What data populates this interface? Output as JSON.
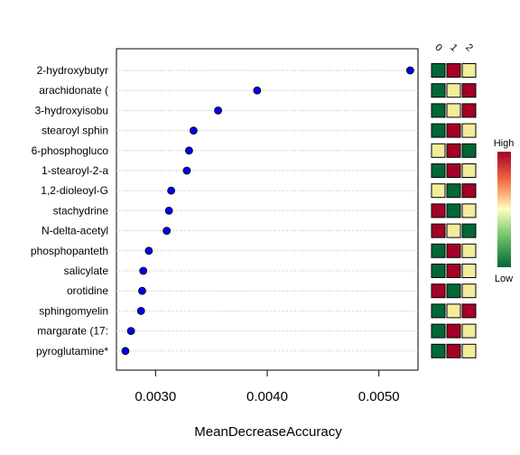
{
  "chart_data": {
    "type": "scatter",
    "xlabel": "MeanDecreaseAccuracy",
    "xlim": [
      0.00265,
      0.00535
    ],
    "xticks": [
      0.003,
      0.004,
      0.005
    ],
    "xtick_labels": [
      "0.0030",
      "0.0040",
      "0.0050"
    ],
    "grid": "dotted horizontal guide lines",
    "point_color": "#0000ee",
    "features": [
      {
        "label": "2-hydroxybutyr",
        "value": 0.00528
      },
      {
        "label": "arachidonate (",
        "value": 0.00391
      },
      {
        "label": "3-hydroxyisobu",
        "value": 0.00356
      },
      {
        "label": "stearoyl sphin",
        "value": 0.00334
      },
      {
        "label": "6-phosphogluco",
        "value": 0.0033
      },
      {
        "label": "1-stearoyl-2-a",
        "value": 0.00328
      },
      {
        "label": "1,2-dioleoyl-G",
        "value": 0.00314
      },
      {
        "label": "stachydrine",
        "value": 0.00312
      },
      {
        "label": "N-delta-acetyl",
        "value": 0.0031
      },
      {
        "label": "phosphopanteth",
        "value": 0.00294
      },
      {
        "label": "salicylate",
        "value": 0.00289
      },
      {
        "label": "orotidine",
        "value": 0.00288
      },
      {
        "label": "sphingomyelin",
        "value": 0.00287
      },
      {
        "label": "margarate (17:",
        "value": 0.00278
      },
      {
        "label": "pyroglutamine*",
        "value": 0.00273
      }
    ],
    "heatmap": {
      "columns": [
        "0",
        "1",
        "2"
      ],
      "cells": [
        [
          "low",
          "high",
          "mid"
        ],
        [
          "low",
          "mid",
          "high"
        ],
        [
          "low",
          "mid",
          "high"
        ],
        [
          "low",
          "high",
          "mid"
        ],
        [
          "mid",
          "high",
          "low"
        ],
        [
          "low",
          "high",
          "mid"
        ],
        [
          "mid",
          "low",
          "high"
        ],
        [
          "high",
          "low",
          "mid"
        ],
        [
          "high",
          "mid",
          "low"
        ],
        [
          "low",
          "high",
          "mid"
        ],
        [
          "low",
          "high",
          "mid"
        ],
        [
          "high",
          "low",
          "mid"
        ],
        [
          "low",
          "mid",
          "high"
        ],
        [
          "low",
          "high",
          "mid"
        ],
        [
          "low",
          "high",
          "mid"
        ]
      ],
      "colors": {
        "high": "#a50026",
        "mid": "#f2ec9c",
        "low": "#006837"
      }
    },
    "legend": {
      "high_label": "High",
      "low_label": "Low",
      "gradient": [
        "#006837",
        "#66bd63",
        "#ffffbf",
        "#f46d43",
        "#a50026"
      ]
    }
  }
}
